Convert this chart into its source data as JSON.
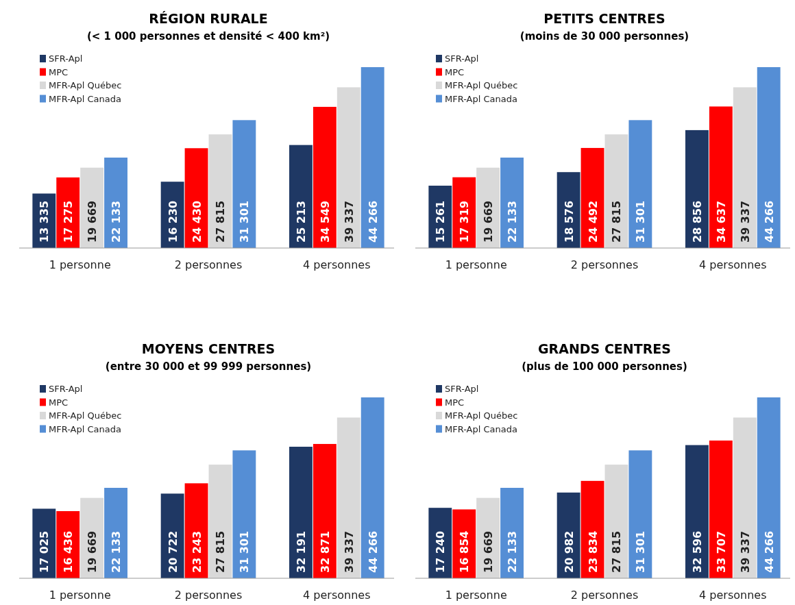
{
  "chart_data": [
    {
      "type": "bar",
      "title": "RÉGION RURALE",
      "subtitle": "(< 1 000 personnes et densité < 400 km²)",
      "categories": [
        "1 personne",
        "2 personnes",
        "4 personnes"
      ],
      "legend": "top left",
      "series": [
        {
          "name": "SFR-Apl",
          "color": "#1f3864",
          "values": [
            13335,
            16230,
            25213
          ],
          "value_labels": [
            "13 335",
            "16 230",
            "25 213"
          ]
        },
        {
          "name": "MPC",
          "color": "#ff0000",
          "values": [
            17275,
            24430,
            34549
          ],
          "value_labels": [
            "17 275",
            "24 430",
            "34 549"
          ]
        },
        {
          "name": "MFR-Apl Québec",
          "color": "#d9d9d9",
          "values": [
            19669,
            27815,
            39337
          ],
          "value_labels": [
            "19 669",
            "27 815",
            "39 337"
          ]
        },
        {
          "name": "MFR-Apl Canada",
          "color": "#558ed5",
          "values": [
            22133,
            31301,
            44266
          ],
          "value_labels": [
            "22 133",
            "31 301",
            "44 266"
          ]
        }
      ]
    },
    {
      "type": "bar",
      "title": "PETITS CENTRES",
      "subtitle": "(moins de 30 000  personnes)",
      "categories": [
        "1 personne",
        "2 personnes",
        "4 personnes"
      ],
      "legend": "top left",
      "series": [
        {
          "name": "SFR-Apl",
          "color": "#1f3864",
          "values": [
            15261,
            18576,
            28856
          ],
          "value_labels": [
            "15 261",
            "18 576",
            "28 856"
          ]
        },
        {
          "name": "MPC",
          "color": "#ff0000",
          "values": [
            17319,
            24492,
            34637
          ],
          "value_labels": [
            "17 319",
            "24 492",
            "34 637"
          ]
        },
        {
          "name": "MFR-Apl Québec",
          "color": "#d9d9d9",
          "values": [
            19669,
            27815,
            39337
          ],
          "value_labels": [
            "19 669",
            "27 815",
            "39 337"
          ]
        },
        {
          "name": "MFR-Apl Canada",
          "color": "#558ed5",
          "values": [
            22133,
            31301,
            44266
          ],
          "value_labels": [
            "22 133",
            "31 301",
            "44 266"
          ]
        }
      ]
    },
    {
      "type": "bar",
      "title": "MOYENS CENTRES",
      "subtitle": "(entre 30 000 et 99 999 personnes)",
      "categories": [
        "1 personne",
        "2 personnes",
        "4 personnes"
      ],
      "legend": "top left",
      "series": [
        {
          "name": "SFR-Apl",
          "color": "#1f3864",
          "values": [
            17025,
            20722,
            32191
          ],
          "value_labels": [
            "17 025",
            "20 722",
            "32 191"
          ]
        },
        {
          "name": "MPC",
          "color": "#ff0000",
          "values": [
            16436,
            23243,
            32871
          ],
          "value_labels": [
            "16 436",
            "23 243",
            "32 871"
          ]
        },
        {
          "name": "MFR-Apl Québec",
          "color": "#d9d9d9",
          "values": [
            19669,
            27815,
            39337
          ],
          "value_labels": [
            "19 669",
            "27 815",
            "39 337"
          ]
        },
        {
          "name": "MFR-Apl Canada",
          "color": "#558ed5",
          "values": [
            22133,
            31301,
            44266
          ],
          "value_labels": [
            "22 133",
            "31 301",
            "44 266"
          ]
        }
      ]
    },
    {
      "type": "bar",
      "title": "GRANDS CENTRES",
      "subtitle": "(plus de 100 000 personnes)",
      "categories": [
        "1 personne",
        "2 personnes",
        "4 personnes"
      ],
      "legend": "top left",
      "series": [
        {
          "name": "SFR-Apl",
          "color": "#1f3864",
          "values": [
            17240,
            20982,
            32596
          ],
          "value_labels": [
            "17 240",
            "20 982",
            "32 596"
          ]
        },
        {
          "name": "MPC",
          "color": "#ff0000",
          "values": [
            16854,
            23834,
            33707
          ],
          "value_labels": [
            "16 854",
            "23 834",
            "33 707"
          ]
        },
        {
          "name": "MFR-Apl Québec",
          "color": "#d9d9d9",
          "values": [
            19669,
            27815,
            39337
          ],
          "value_labels": [
            "19 669",
            "27 815",
            "39 337"
          ]
        },
        {
          "name": "MFR-Apl Canada",
          "color": "#558ed5",
          "values": [
            22133,
            31301,
            44266
          ],
          "value_labels": [
            "22 133",
            "31 301",
            "44 266"
          ]
        }
      ]
    }
  ]
}
